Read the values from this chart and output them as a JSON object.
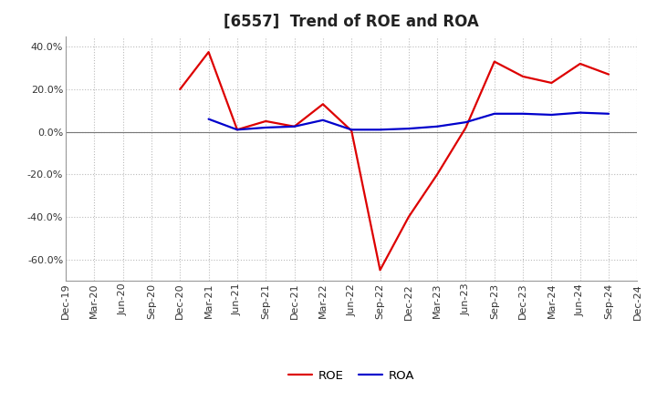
{
  "title": "[6557]  Trend of ROE and ROA",
  "x_labels": [
    "Dec-19",
    "Mar-20",
    "Jun-20",
    "Sep-20",
    "Dec-20",
    "Mar-21",
    "Jun-21",
    "Sep-21",
    "Dec-21",
    "Mar-22",
    "Jun-22",
    "Sep-22",
    "Dec-22",
    "Mar-23",
    "Jun-23",
    "Sep-23",
    "Dec-23",
    "Mar-24",
    "Jun-24",
    "Sep-24",
    "Dec-24"
  ],
  "roe_values": [
    null,
    null,
    null,
    null,
    20.0,
    37.5,
    1.0,
    5.0,
    2.5,
    13.0,
    0.5,
    -65.0,
    -40.0,
    -20.0,
    2.0,
    33.0,
    26.0,
    23.0,
    32.0,
    27.0,
    null
  ],
  "roa_values": [
    null,
    null,
    null,
    null,
    null,
    6.0,
    1.0,
    2.0,
    2.5,
    5.5,
    1.0,
    1.0,
    1.5,
    2.5,
    4.5,
    8.5,
    8.5,
    8.0,
    9.0,
    8.5,
    null
  ],
  "roe_color": "#dd0000",
  "roa_color": "#0000cc",
  "background_color": "#ffffff",
  "grid_color": "#bbbbbb",
  "ylim": [
    -70,
    45
  ],
  "yticks": [
    -60,
    -40,
    -20,
    0,
    20,
    40
  ],
  "ytick_labels": [
    "-60.0%",
    "-40.0%",
    "-20.0%",
    "0.0%",
    "20.0%",
    "40.0%"
  ],
  "legend_labels": [
    "ROE",
    "ROA"
  ],
  "line_width": 1.6,
  "title_fontsize": 12,
  "tick_fontsize": 8
}
